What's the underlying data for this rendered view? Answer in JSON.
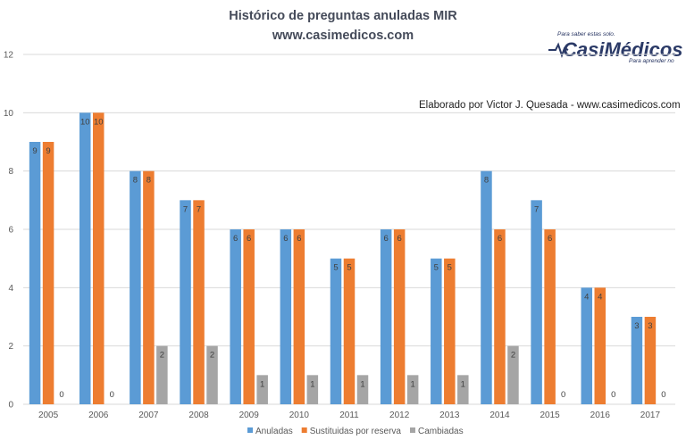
{
  "header": {
    "title": "Histórico  de  preguntas  anuladas  MIR",
    "subtitle": "www.casimedicos.com"
  },
  "credit": "Elaborado por Victor J. Quesada - www.casimedicos.com",
  "logo": {
    "top_text": "Para saber estas solo.",
    "brand": "CasiMédicos",
    "bottom_text": "Para aprender no"
  },
  "colors": {
    "anuladas": "#5b9bd5",
    "sustituidas": "#ed7d31",
    "cambiadas": "#a5a5a5",
    "grid": "#d9d9d9",
    "title": "#444a59"
  },
  "chart_data": {
    "type": "bar",
    "title": "Histórico  de  preguntas  anuladas  MIR",
    "subtitle": "www.casimedicos.com",
    "xlabel": "",
    "ylabel": "",
    "ylim": [
      0,
      12
    ],
    "yticks": [
      0,
      2,
      4,
      6,
      8,
      10,
      12
    ],
    "grid": true,
    "legend_position": "bottom",
    "categories": [
      "2005",
      "2006",
      "2007",
      "2008",
      "2009",
      "2010",
      "2011",
      "2012",
      "2013",
      "2014",
      "2015",
      "2016",
      "2017"
    ],
    "series": [
      {
        "name": "Anuladas",
        "values": [
          9,
          10,
          8,
          7,
          6,
          6,
          5,
          6,
          5,
          8,
          7,
          4,
          3
        ]
      },
      {
        "name": "Sustituidas por reserva",
        "values": [
          9,
          10,
          8,
          7,
          6,
          6,
          5,
          6,
          5,
          6,
          6,
          4,
          3
        ]
      },
      {
        "name": "Cambiadas",
        "values": [
          0,
          0,
          2,
          2,
          1,
          1,
          1,
          1,
          1,
          2,
          0,
          0,
          0
        ]
      }
    ]
  }
}
